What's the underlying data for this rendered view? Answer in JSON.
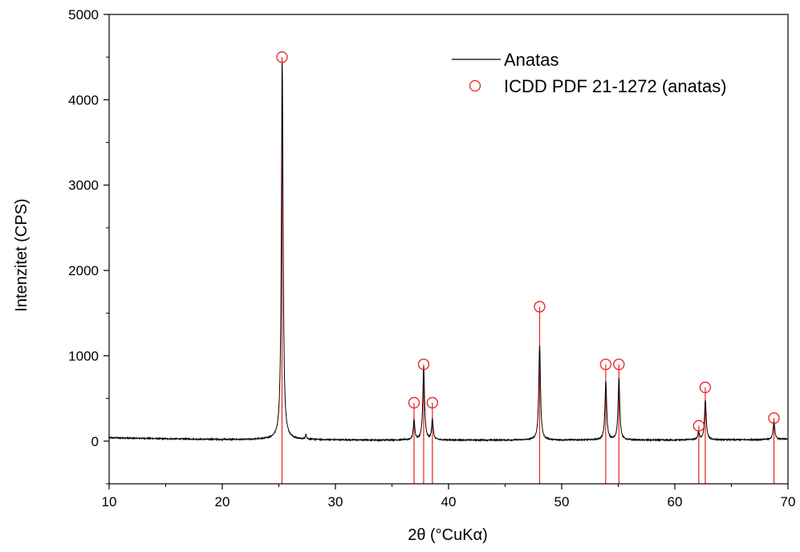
{
  "chart_data": {
    "type": "line",
    "xlabel": "2θ (°CuKα)",
    "ylabel": "Intenzitet (CPS)",
    "xlim": [
      10,
      70
    ],
    "ylim": [
      -500,
      5000
    ],
    "x_ticks": [
      10,
      20,
      30,
      40,
      50,
      60,
      70
    ],
    "y_ticks": [
      0,
      1000,
      2000,
      3000,
      4000,
      5000
    ],
    "grid": false,
    "legend_position": "top-right",
    "series": [
      {
        "name": "Anatas",
        "style": "line",
        "color": "#000000",
        "background_points": [
          [
            10,
            40
          ],
          [
            12,
            35
          ],
          [
            15,
            28
          ],
          [
            18,
            22
          ],
          [
            22,
            18
          ],
          [
            24.8,
            25
          ],
          [
            26,
            20
          ],
          [
            30,
            15
          ],
          [
            34,
            12
          ],
          [
            36.5,
            14
          ],
          [
            40,
            12
          ],
          [
            45,
            12
          ],
          [
            47.5,
            15
          ],
          [
            50,
            12
          ],
          [
            53,
            14
          ],
          [
            56,
            12
          ],
          [
            60,
            12
          ],
          [
            61.8,
            18
          ],
          [
            64,
            15
          ],
          [
            68.3,
            18
          ],
          [
            70,
            22
          ]
        ],
        "peaks": [
          {
            "x": 25.3,
            "y": 4420,
            "w": 0.09
          },
          {
            "x": 27.4,
            "y": 55,
            "w": 0.06
          },
          {
            "x": 36.95,
            "y": 230,
            "w": 0.08
          },
          {
            "x": 37.8,
            "y": 850,
            "w": 0.09
          },
          {
            "x": 38.57,
            "y": 240,
            "w": 0.08
          },
          {
            "x": 48.05,
            "y": 1110,
            "w": 0.09
          },
          {
            "x": 53.9,
            "y": 680,
            "w": 0.09
          },
          {
            "x": 55.06,
            "y": 720,
            "w": 0.09
          },
          {
            "x": 62.1,
            "y": 90,
            "w": 0.08
          },
          {
            "x": 62.7,
            "y": 460,
            "w": 0.09
          },
          {
            "x": 68.76,
            "y": 210,
            "w": 0.09
          },
          {
            "x": 70.3,
            "y": 90,
            "w": 0.09
          }
        ]
      },
      {
        "name": "ICDD PDF 21-1272 (anatas)",
        "style": "stick-circle",
        "color": "#e8201e",
        "points": [
          {
            "x": 25.28,
            "y": 4500
          },
          {
            "x": 36.95,
            "y": 450
          },
          {
            "x": 37.8,
            "y": 900
          },
          {
            "x": 38.57,
            "y": 450
          },
          {
            "x": 48.05,
            "y": 1575
          },
          {
            "x": 53.89,
            "y": 900
          },
          {
            "x": 55.06,
            "y": 900
          },
          {
            "x": 62.12,
            "y": 180
          },
          {
            "x": 62.69,
            "y": 630
          },
          {
            "x": 68.76,
            "y": 270
          }
        ]
      }
    ]
  }
}
